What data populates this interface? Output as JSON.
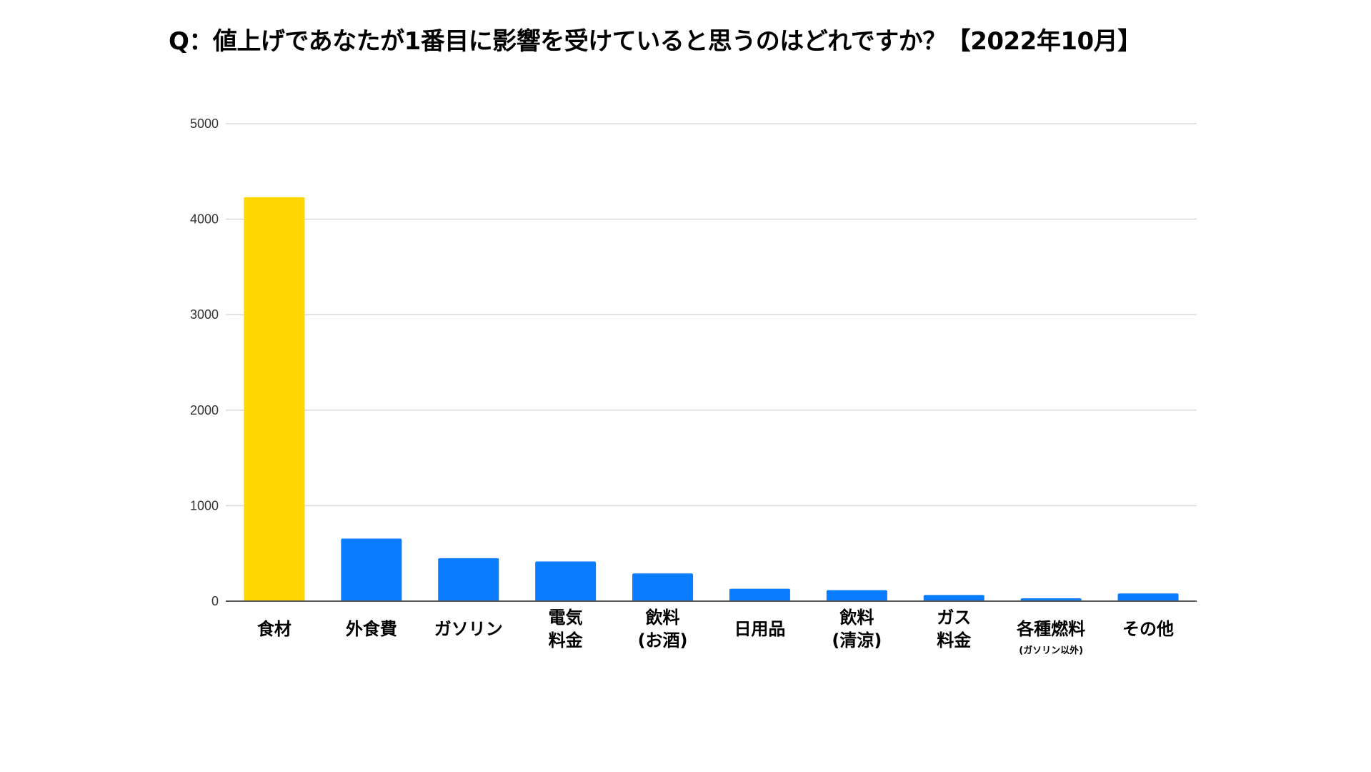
{
  "chart_data": {
    "type": "bar",
    "title": "Q：値上げであなたが1番目に影響を受けていると思うのはどれですか？【2022年10月】",
    "xlabel": "",
    "ylabel": "",
    "ylim": [
      0,
      5000
    ],
    "yticks": [
      0,
      1000,
      2000,
      3000,
      4000,
      5000
    ],
    "ytick_labels": [
      "0",
      "1000",
      "2000",
      "3000",
      "4000",
      "5000"
    ],
    "grid": true,
    "categories": [
      {
        "lines": [
          "食材"
        ],
        "sub": ""
      },
      {
        "lines": [
          "外食費"
        ],
        "sub": ""
      },
      {
        "lines": [
          "ガソリン"
        ],
        "sub": ""
      },
      {
        "lines": [
          "電気",
          "料金"
        ],
        "sub": ""
      },
      {
        "lines": [
          "飲料",
          "(お酒)"
        ],
        "sub": ""
      },
      {
        "lines": [
          "日用品"
        ],
        "sub": ""
      },
      {
        "lines": [
          "飲料",
          "(清涼)"
        ],
        "sub": ""
      },
      {
        "lines": [
          "ガス",
          "料金"
        ],
        "sub": ""
      },
      {
        "lines": [
          "各種燃料"
        ],
        "sub": "(ガソリン以外)"
      },
      {
        "lines": [
          "その他"
        ],
        "sub": ""
      }
    ],
    "values": [
      4230,
      655,
      450,
      415,
      290,
      130,
      115,
      65,
      30,
      80
    ],
    "bar_colors": [
      "#FFD600",
      "#0A7CFF",
      "#0A7CFF",
      "#0A7CFF",
      "#0A7CFF",
      "#0A7CFF",
      "#0A7CFF",
      "#0A7CFF",
      "#0A7CFF",
      "#0A7CFF"
    ],
    "colors": {
      "highlight": "#FFD600",
      "default": "#0A7CFF",
      "grid": "#d9d9d9",
      "axis": "#555555"
    }
  }
}
